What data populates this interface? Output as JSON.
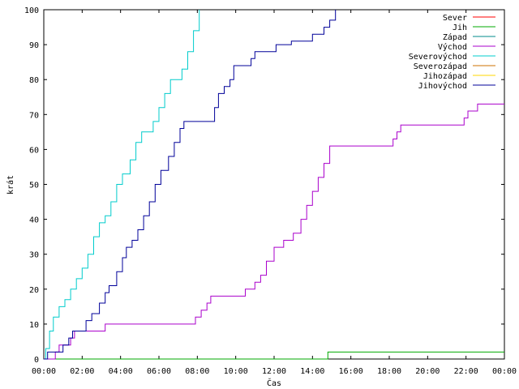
{
  "chart_data": {
    "type": "line",
    "xlabel": "Čas",
    "ylabel": "krát",
    "xlim": [
      0,
      24
    ],
    "ylim": [
      0,
      100
    ],
    "x_ticks": [
      {
        "value": 0,
        "label": "00:00"
      },
      {
        "value": 2,
        "label": "02:00"
      },
      {
        "value": 4,
        "label": "04:00"
      },
      {
        "value": 6,
        "label": "06:00"
      },
      {
        "value": 8,
        "label": "08:00"
      },
      {
        "value": 10,
        "label": "10:00"
      },
      {
        "value": 12,
        "label": "12:00"
      },
      {
        "value": 14,
        "label": "14:00"
      },
      {
        "value": 16,
        "label": "16:00"
      },
      {
        "value": 18,
        "label": "18:00"
      },
      {
        "value": 20,
        "label": "20:00"
      },
      {
        "value": 22,
        "label": "22:00"
      },
      {
        "value": 24,
        "label": "00:00"
      }
    ],
    "y_ticks": [
      0,
      10,
      20,
      30,
      40,
      50,
      60,
      70,
      80,
      90,
      100
    ],
    "grid": false,
    "legend_position": "top-right",
    "series": [
      {
        "name": "Sever",
        "color": "#ff0000",
        "points": []
      },
      {
        "name": "Jih",
        "color": "#00aa00",
        "points": [
          [
            0,
            0
          ],
          [
            14.8,
            0
          ],
          [
            14.8,
            2
          ],
          [
            24,
            2
          ]
        ]
      },
      {
        "name": "Západ",
        "color": "#008b8b",
        "points": []
      },
      {
        "name": "Východ",
        "color": "#aa00cc",
        "points": [
          [
            0,
            0
          ],
          [
            0.6,
            0
          ],
          [
            0.6,
            2
          ],
          [
            0.8,
            2
          ],
          [
            0.8,
            4
          ],
          [
            1.4,
            4
          ],
          [
            1.4,
            6
          ],
          [
            1.6,
            6
          ],
          [
            1.6,
            8
          ],
          [
            3.2,
            8
          ],
          [
            3.2,
            10
          ],
          [
            7.9,
            10
          ],
          [
            7.9,
            12
          ],
          [
            8.2,
            12
          ],
          [
            8.2,
            14
          ],
          [
            8.5,
            14
          ],
          [
            8.5,
            16
          ],
          [
            8.7,
            16
          ],
          [
            8.7,
            18
          ],
          [
            10.5,
            18
          ],
          [
            10.5,
            20
          ],
          [
            11.0,
            20
          ],
          [
            11.0,
            22
          ],
          [
            11.3,
            22
          ],
          [
            11.3,
            24
          ],
          [
            11.6,
            24
          ],
          [
            11.6,
            28
          ],
          [
            12.0,
            28
          ],
          [
            12.0,
            32
          ],
          [
            12.5,
            32
          ],
          [
            12.5,
            34
          ],
          [
            13.0,
            34
          ],
          [
            13.0,
            36
          ],
          [
            13.4,
            36
          ],
          [
            13.4,
            40
          ],
          [
            13.7,
            40
          ],
          [
            13.7,
            44
          ],
          [
            14.0,
            44
          ],
          [
            14.0,
            48
          ],
          [
            14.3,
            48
          ],
          [
            14.3,
            52
          ],
          [
            14.6,
            52
          ],
          [
            14.6,
            56
          ],
          [
            14.9,
            56
          ],
          [
            14.9,
            61
          ],
          [
            18.2,
            61
          ],
          [
            18.2,
            63
          ],
          [
            18.4,
            63
          ],
          [
            18.4,
            65
          ],
          [
            18.6,
            65
          ],
          [
            18.6,
            67
          ],
          [
            21.9,
            67
          ],
          [
            21.9,
            69
          ],
          [
            22.1,
            69
          ],
          [
            22.1,
            71
          ],
          [
            22.6,
            71
          ],
          [
            22.6,
            73
          ],
          [
            24,
            73
          ]
        ]
      },
      {
        "name": "Severovýchod",
        "color": "#00cccc",
        "points": [
          [
            0,
            0
          ],
          [
            0.1,
            0
          ],
          [
            0.1,
            3
          ],
          [
            0.3,
            3
          ],
          [
            0.3,
            8
          ],
          [
            0.5,
            8
          ],
          [
            0.5,
            12
          ],
          [
            0.8,
            12
          ],
          [
            0.8,
            15
          ],
          [
            1.1,
            15
          ],
          [
            1.1,
            17
          ],
          [
            1.4,
            17
          ],
          [
            1.4,
            20
          ],
          [
            1.7,
            20
          ],
          [
            1.7,
            23
          ],
          [
            2.0,
            23
          ],
          [
            2.0,
            26
          ],
          [
            2.3,
            26
          ],
          [
            2.3,
            30
          ],
          [
            2.6,
            30
          ],
          [
            2.6,
            35
          ],
          [
            2.9,
            35
          ],
          [
            2.9,
            39
          ],
          [
            3.2,
            39
          ],
          [
            3.2,
            41
          ],
          [
            3.5,
            41
          ],
          [
            3.5,
            45
          ],
          [
            3.8,
            45
          ],
          [
            3.8,
            50
          ],
          [
            4.1,
            50
          ],
          [
            4.1,
            53
          ],
          [
            4.5,
            53
          ],
          [
            4.5,
            57
          ],
          [
            4.8,
            57
          ],
          [
            4.8,
            62
          ],
          [
            5.1,
            62
          ],
          [
            5.1,
            65
          ],
          [
            5.7,
            65
          ],
          [
            5.7,
            68
          ],
          [
            6.0,
            68
          ],
          [
            6.0,
            72
          ],
          [
            6.3,
            72
          ],
          [
            6.3,
            76
          ],
          [
            6.6,
            76
          ],
          [
            6.6,
            80
          ],
          [
            7.2,
            80
          ],
          [
            7.2,
            83
          ],
          [
            7.5,
            83
          ],
          [
            7.5,
            88
          ],
          [
            7.8,
            88
          ],
          [
            7.8,
            94
          ],
          [
            8.1,
            94
          ],
          [
            8.1,
            100
          ]
        ]
      },
      {
        "name": "Severozápad",
        "color": "#cc7000",
        "points": []
      },
      {
        "name": "Jihozápad",
        "color": "#ffd700",
        "points": []
      },
      {
        "name": "Jihovýchod",
        "color": "#000099",
        "points": [
          [
            0,
            0
          ],
          [
            0.2,
            0
          ],
          [
            0.2,
            2
          ],
          [
            1.0,
            2
          ],
          [
            1.0,
            4
          ],
          [
            1.3,
            4
          ],
          [
            1.3,
            6
          ],
          [
            1.5,
            6
          ],
          [
            1.5,
            8
          ],
          [
            2.2,
            8
          ],
          [
            2.2,
            11
          ],
          [
            2.5,
            11
          ],
          [
            2.5,
            13
          ],
          [
            2.9,
            13
          ],
          [
            2.9,
            16
          ],
          [
            3.2,
            16
          ],
          [
            3.2,
            19
          ],
          [
            3.4,
            19
          ],
          [
            3.4,
            21
          ],
          [
            3.8,
            21
          ],
          [
            3.8,
            25
          ],
          [
            4.1,
            25
          ],
          [
            4.1,
            29
          ],
          [
            4.3,
            29
          ],
          [
            4.3,
            32
          ],
          [
            4.6,
            32
          ],
          [
            4.6,
            34
          ],
          [
            4.9,
            34
          ],
          [
            4.9,
            37
          ],
          [
            5.2,
            37
          ],
          [
            5.2,
            41
          ],
          [
            5.5,
            41
          ],
          [
            5.5,
            45
          ],
          [
            5.8,
            45
          ],
          [
            5.8,
            50
          ],
          [
            6.1,
            50
          ],
          [
            6.1,
            54
          ],
          [
            6.5,
            54
          ],
          [
            6.5,
            58
          ],
          [
            6.8,
            58
          ],
          [
            6.8,
            62
          ],
          [
            7.1,
            62
          ],
          [
            7.1,
            66
          ],
          [
            7.3,
            66
          ],
          [
            7.3,
            68
          ],
          [
            8.9,
            68
          ],
          [
            8.9,
            72
          ],
          [
            9.1,
            72
          ],
          [
            9.1,
            76
          ],
          [
            9.4,
            76
          ],
          [
            9.4,
            78
          ],
          [
            9.7,
            78
          ],
          [
            9.7,
            80
          ],
          [
            9.9,
            80
          ],
          [
            9.9,
            84
          ],
          [
            10.8,
            84
          ],
          [
            10.8,
            86
          ],
          [
            11.0,
            86
          ],
          [
            11.0,
            88
          ],
          [
            12.1,
            88
          ],
          [
            12.1,
            90
          ],
          [
            12.9,
            90
          ],
          [
            12.9,
            91
          ],
          [
            14.0,
            91
          ],
          [
            14.0,
            93
          ],
          [
            14.6,
            93
          ],
          [
            14.6,
            95
          ],
          [
            14.9,
            95
          ],
          [
            14.9,
            97
          ],
          [
            15.2,
            97
          ],
          [
            15.2,
            100
          ]
        ]
      }
    ]
  }
}
